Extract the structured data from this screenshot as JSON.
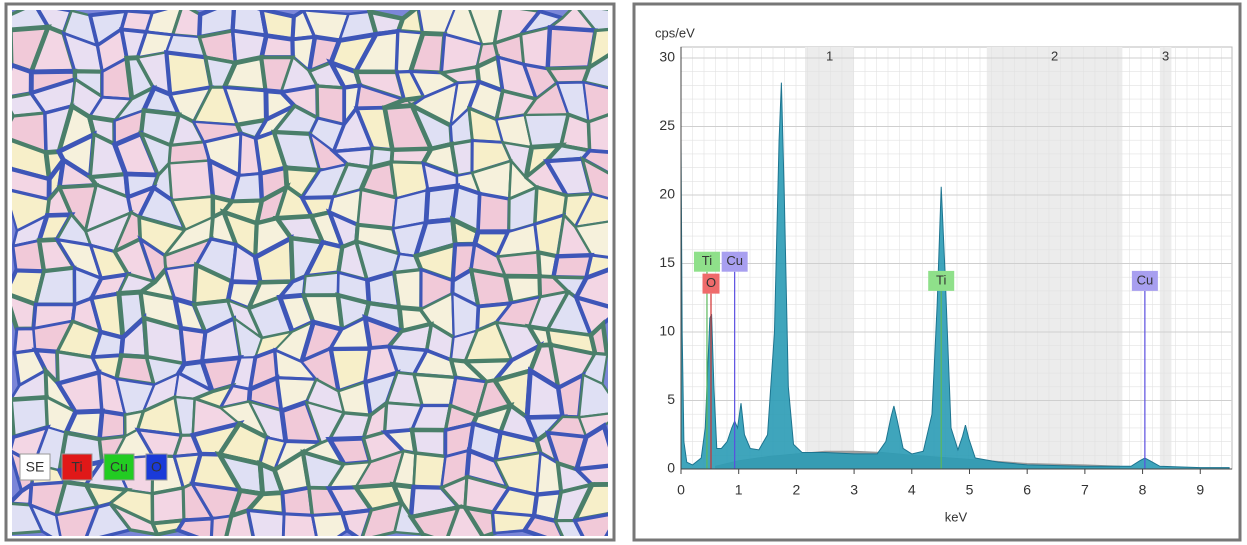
{
  "map_legend": [
    {
      "label": "SE",
      "color": "#ffffff"
    },
    {
      "label": "Ti",
      "color": "#e01818"
    },
    {
      "label": "Cu",
      "color": "#22cc22"
    },
    {
      "label": "O",
      "color": "#1a3ad8"
    }
  ],
  "chart_data": {
    "type": "area",
    "y_label": "cps/eV",
    "x_label": "keV",
    "xlim": [
      0,
      9.55
    ],
    "ylim": [
      0,
      30.8
    ],
    "xticks": [
      0,
      1,
      2,
      3,
      4,
      5,
      6,
      7,
      8,
      9
    ],
    "yticks": [
      0,
      5,
      10,
      15,
      20,
      25,
      30
    ],
    "grid": true,
    "regions": [
      {
        "label": "1",
        "start": 2.15,
        "end": 3.0
      },
      {
        "label": "2",
        "start": 5.3,
        "end": 7.65
      },
      {
        "label": "3",
        "start": 8.3,
        "end": 8.5
      }
    ],
    "series": [
      {
        "color": "#9a9a9a",
        "x": [
          0.6,
          1.0,
          1.5,
          2.0,
          2.5,
          3.0,
          3.5,
          4.0,
          5.0,
          6.0,
          7.0,
          7.6
        ],
        "values": [
          0.2,
          0.6,
          0.9,
          1.1,
          1.3,
          1.3,
          1.2,
          1.0,
          0.7,
          0.4,
          0.3,
          0.2
        ]
      },
      {
        "color": "#2a9bb5",
        "x": [
          0,
          0.02,
          0.05,
          0.1,
          0.2,
          0.35,
          0.42,
          0.46,
          0.5,
          0.53,
          0.57,
          0.62,
          0.7,
          0.8,
          0.88,
          0.93,
          0.98,
          1.04,
          1.1,
          1.2,
          1.35,
          1.5,
          1.62,
          1.7,
          1.74,
          1.79,
          1.86,
          1.95,
          2.1,
          2.5,
          3.0,
          3.4,
          3.55,
          3.64,
          3.69,
          3.75,
          3.85,
          4.0,
          4.2,
          4.35,
          4.44,
          4.51,
          4.58,
          4.68,
          4.8,
          4.88,
          4.93,
          4.99,
          5.1,
          5.5,
          6.0,
          7.0,
          7.8,
          7.95,
          8.04,
          8.13,
          8.3,
          9.0,
          9.5
        ],
        "values": [
          24,
          10,
          2,
          0.5,
          0.3,
          0.8,
          3,
          7,
          11,
          11.3,
          6,
          1.5,
          1.5,
          2,
          3,
          3.5,
          3,
          4.8,
          2.5,
          1.5,
          1.4,
          2.5,
          10,
          24,
          28.2,
          20,
          6,
          1.8,
          1.2,
          1.2,
          1.1,
          1.1,
          2,
          3.8,
          4.6,
          3.5,
          1.5,
          1.1,
          1.3,
          4,
          12,
          20.6,
          14,
          3,
          1.4,
          2.4,
          3.2,
          2.2,
          0.8,
          0.5,
          0.3,
          0.2,
          0.2,
          0.6,
          0.8,
          0.6,
          0.2,
          0.1,
          0.1
        ]
      }
    ],
    "element_lines": [
      {
        "label": "Ti",
        "energy": 0.45,
        "height": 14.4,
        "color": "#8fe08a",
        "line": "#5cb85c"
      },
      {
        "label": "O",
        "energy": 0.52,
        "height": 12.8,
        "color": "#ef6b6b",
        "line": "#d03030"
      },
      {
        "label": "Cu",
        "energy": 0.93,
        "height": 14.4,
        "color": "#a89ff0",
        "line": "#5a4ee0"
      },
      {
        "label": "Ti",
        "energy": 4.51,
        "height": 13.0,
        "color": "#8fe08a",
        "line": "#5cb85c"
      },
      {
        "label": "Cu",
        "energy": 8.04,
        "height": 13.0,
        "color": "#a89ff0",
        "line": "#5a4ee0"
      }
    ]
  }
}
